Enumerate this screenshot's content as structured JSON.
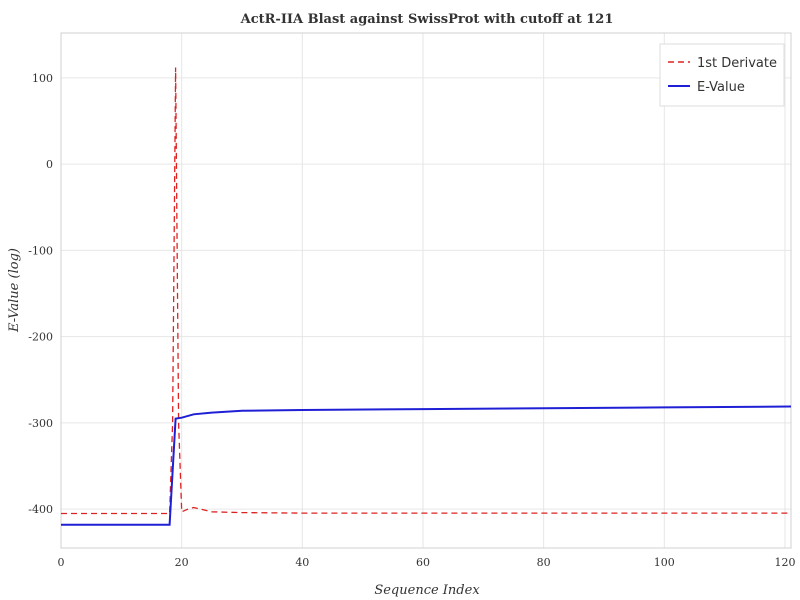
{
  "chart_data": {
    "type": "line",
    "title": "ActR-IIA Blast against SwissProt with cutoff at 121",
    "xlabel": "Sequence Index",
    "ylabel": "E-Value (log)",
    "xlim": [
      0,
      121
    ],
    "ylim": [
      -445,
      152
    ],
    "xticks": [
      0,
      20,
      40,
      60,
      80,
      100,
      120
    ],
    "yticks": [
      -400,
      -300,
      -200,
      -100,
      0,
      100
    ],
    "grid": true,
    "legend_position": "top-right",
    "series": [
      {
        "name": "1st Derivate",
        "color": "#dd2222",
        "style": "dashed",
        "points": [
          [
            0,
            -405
          ],
          [
            17,
            -405
          ],
          [
            18,
            -405
          ],
          [
            18.5,
            -300
          ],
          [
            19,
            112
          ],
          [
            19.5,
            -300
          ],
          [
            20,
            -403
          ],
          [
            21,
            -400
          ],
          [
            22,
            -398
          ],
          [
            25,
            -403
          ],
          [
            30,
            -404
          ],
          [
            40,
            -404.5
          ],
          [
            60,
            -404.5
          ],
          [
            80,
            -404.5
          ],
          [
            100,
            -404.5
          ],
          [
            121,
            -404.5
          ]
        ]
      },
      {
        "name": "E-Value",
        "color": "#1f1fd6",
        "style": "solid",
        "points": [
          [
            0,
            -418
          ],
          [
            18,
            -418
          ],
          [
            19,
            -295
          ],
          [
            20,
            -294
          ],
          [
            22,
            -290
          ],
          [
            25,
            -288
          ],
          [
            30,
            -286
          ],
          [
            40,
            -285
          ],
          [
            60,
            -284
          ],
          [
            80,
            -283
          ],
          [
            100,
            -282
          ],
          [
            121,
            -281
          ]
        ]
      }
    ]
  }
}
